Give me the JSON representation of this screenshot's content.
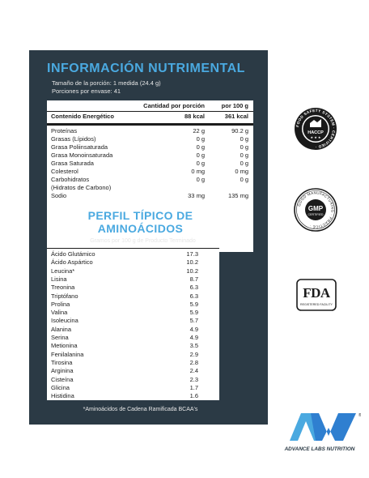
{
  "panel": {
    "title": "INFORMACIÓN NUTRIMENTAL",
    "serving_size": "Tamaño de la porción: 1 medida (24.4 g)",
    "servings": "Porciones por envase: 41",
    "col_header_1": "Cantidad por porción",
    "col_header_2": "por 100 g",
    "energy": {
      "label": "Contenido Energético",
      "per_serving": "88 kcal",
      "per_100": "361 kcal"
    },
    "nutrients": [
      {
        "label": "Proteínas",
        "per_serving": "22 g",
        "per_100": "90.2 g"
      },
      {
        "label": "Grasas (Lípidos)",
        "per_serving": "0 g",
        "per_100": "0 g"
      },
      {
        "label": "Grasa Poliinsaturada",
        "per_serving": "0 g",
        "per_100": "0 g"
      },
      {
        "label": "Grasa Monoinsaturada",
        "per_serving": "0 g",
        "per_100": "0 g"
      },
      {
        "label": "Grasa Saturada",
        "per_serving": "0 g",
        "per_100": "0 g"
      },
      {
        "label": "Colesterol",
        "per_serving": "0 mg",
        "per_100": "0 mg"
      },
      {
        "label": "Carbohidratos",
        "per_serving": "0 g",
        "per_100": "0 g"
      },
      {
        "label": "(Hidratos de Carbono)",
        "per_serving": "",
        "per_100": ""
      },
      {
        "label": "Sodio",
        "per_serving": "33 mg",
        "per_100": "135 mg"
      }
    ]
  },
  "amino": {
    "title_line1": "PERFIL TÍPICO DE",
    "title_line2": "AMINOÁCIDOS",
    "subtitle": "Gramos por 100 g de Producto Terminado",
    "rows": [
      {
        "label": "Ácido Glutámico",
        "value": "17.3"
      },
      {
        "label": "Ácido Aspártico",
        "value": "10.2"
      },
      {
        "label": "Leucina*",
        "value": "10.2"
      },
      {
        "label": "Lisina",
        "value": "8.7"
      },
      {
        "label": "Treonina",
        "value": "6.3"
      },
      {
        "label": "Triptófano",
        "value": "6.3"
      },
      {
        "label": "Prolina",
        "value": "5.9"
      },
      {
        "label": "Valina",
        "value": "5.9"
      },
      {
        "label": "Isoleucina",
        "value": "5.7"
      },
      {
        "label": "Alanina",
        "value": "4.9"
      },
      {
        "label": "Serina",
        "value": "4.9"
      },
      {
        "label": "Metionina",
        "value": "3.5"
      },
      {
        "label": "Fenilalanina",
        "value": "2.9"
      },
      {
        "label": "Tirosina",
        "value": "2.8"
      },
      {
        "label": "Arginina",
        "value": "2.4"
      },
      {
        "label": "Cisteína",
        "value": "2.3"
      },
      {
        "label": "Glicina",
        "value": "1.7"
      },
      {
        "label": "Histidina",
        "value": "1.6"
      }
    ],
    "footnote": "*Aminoácidos de Cadena Ramificada BCAA's"
  },
  "badges": {
    "haccp_ring": "FOOD SAFETY SYSTEM · CERTIFIED ·",
    "haccp_center": "HACCP",
    "gmp_ring": "GOOD MANUFACTURING · PRACTICE ·",
    "gmp_center": "GMP",
    "gmp_sub": "CERTIFIED",
    "fda_mark": "FDA",
    "fda_sub": "REGISTERED FACILITY"
  },
  "brand": {
    "name": "ADVANCE LABS NUTRITION",
    "trademark": "®"
  },
  "colors": {
    "panel_bg": "#2b3a45",
    "accent_blue": "#4aa9e0",
    "logo_blue": "#2f7fd0",
    "badge_dark": "#1a1a1a"
  }
}
